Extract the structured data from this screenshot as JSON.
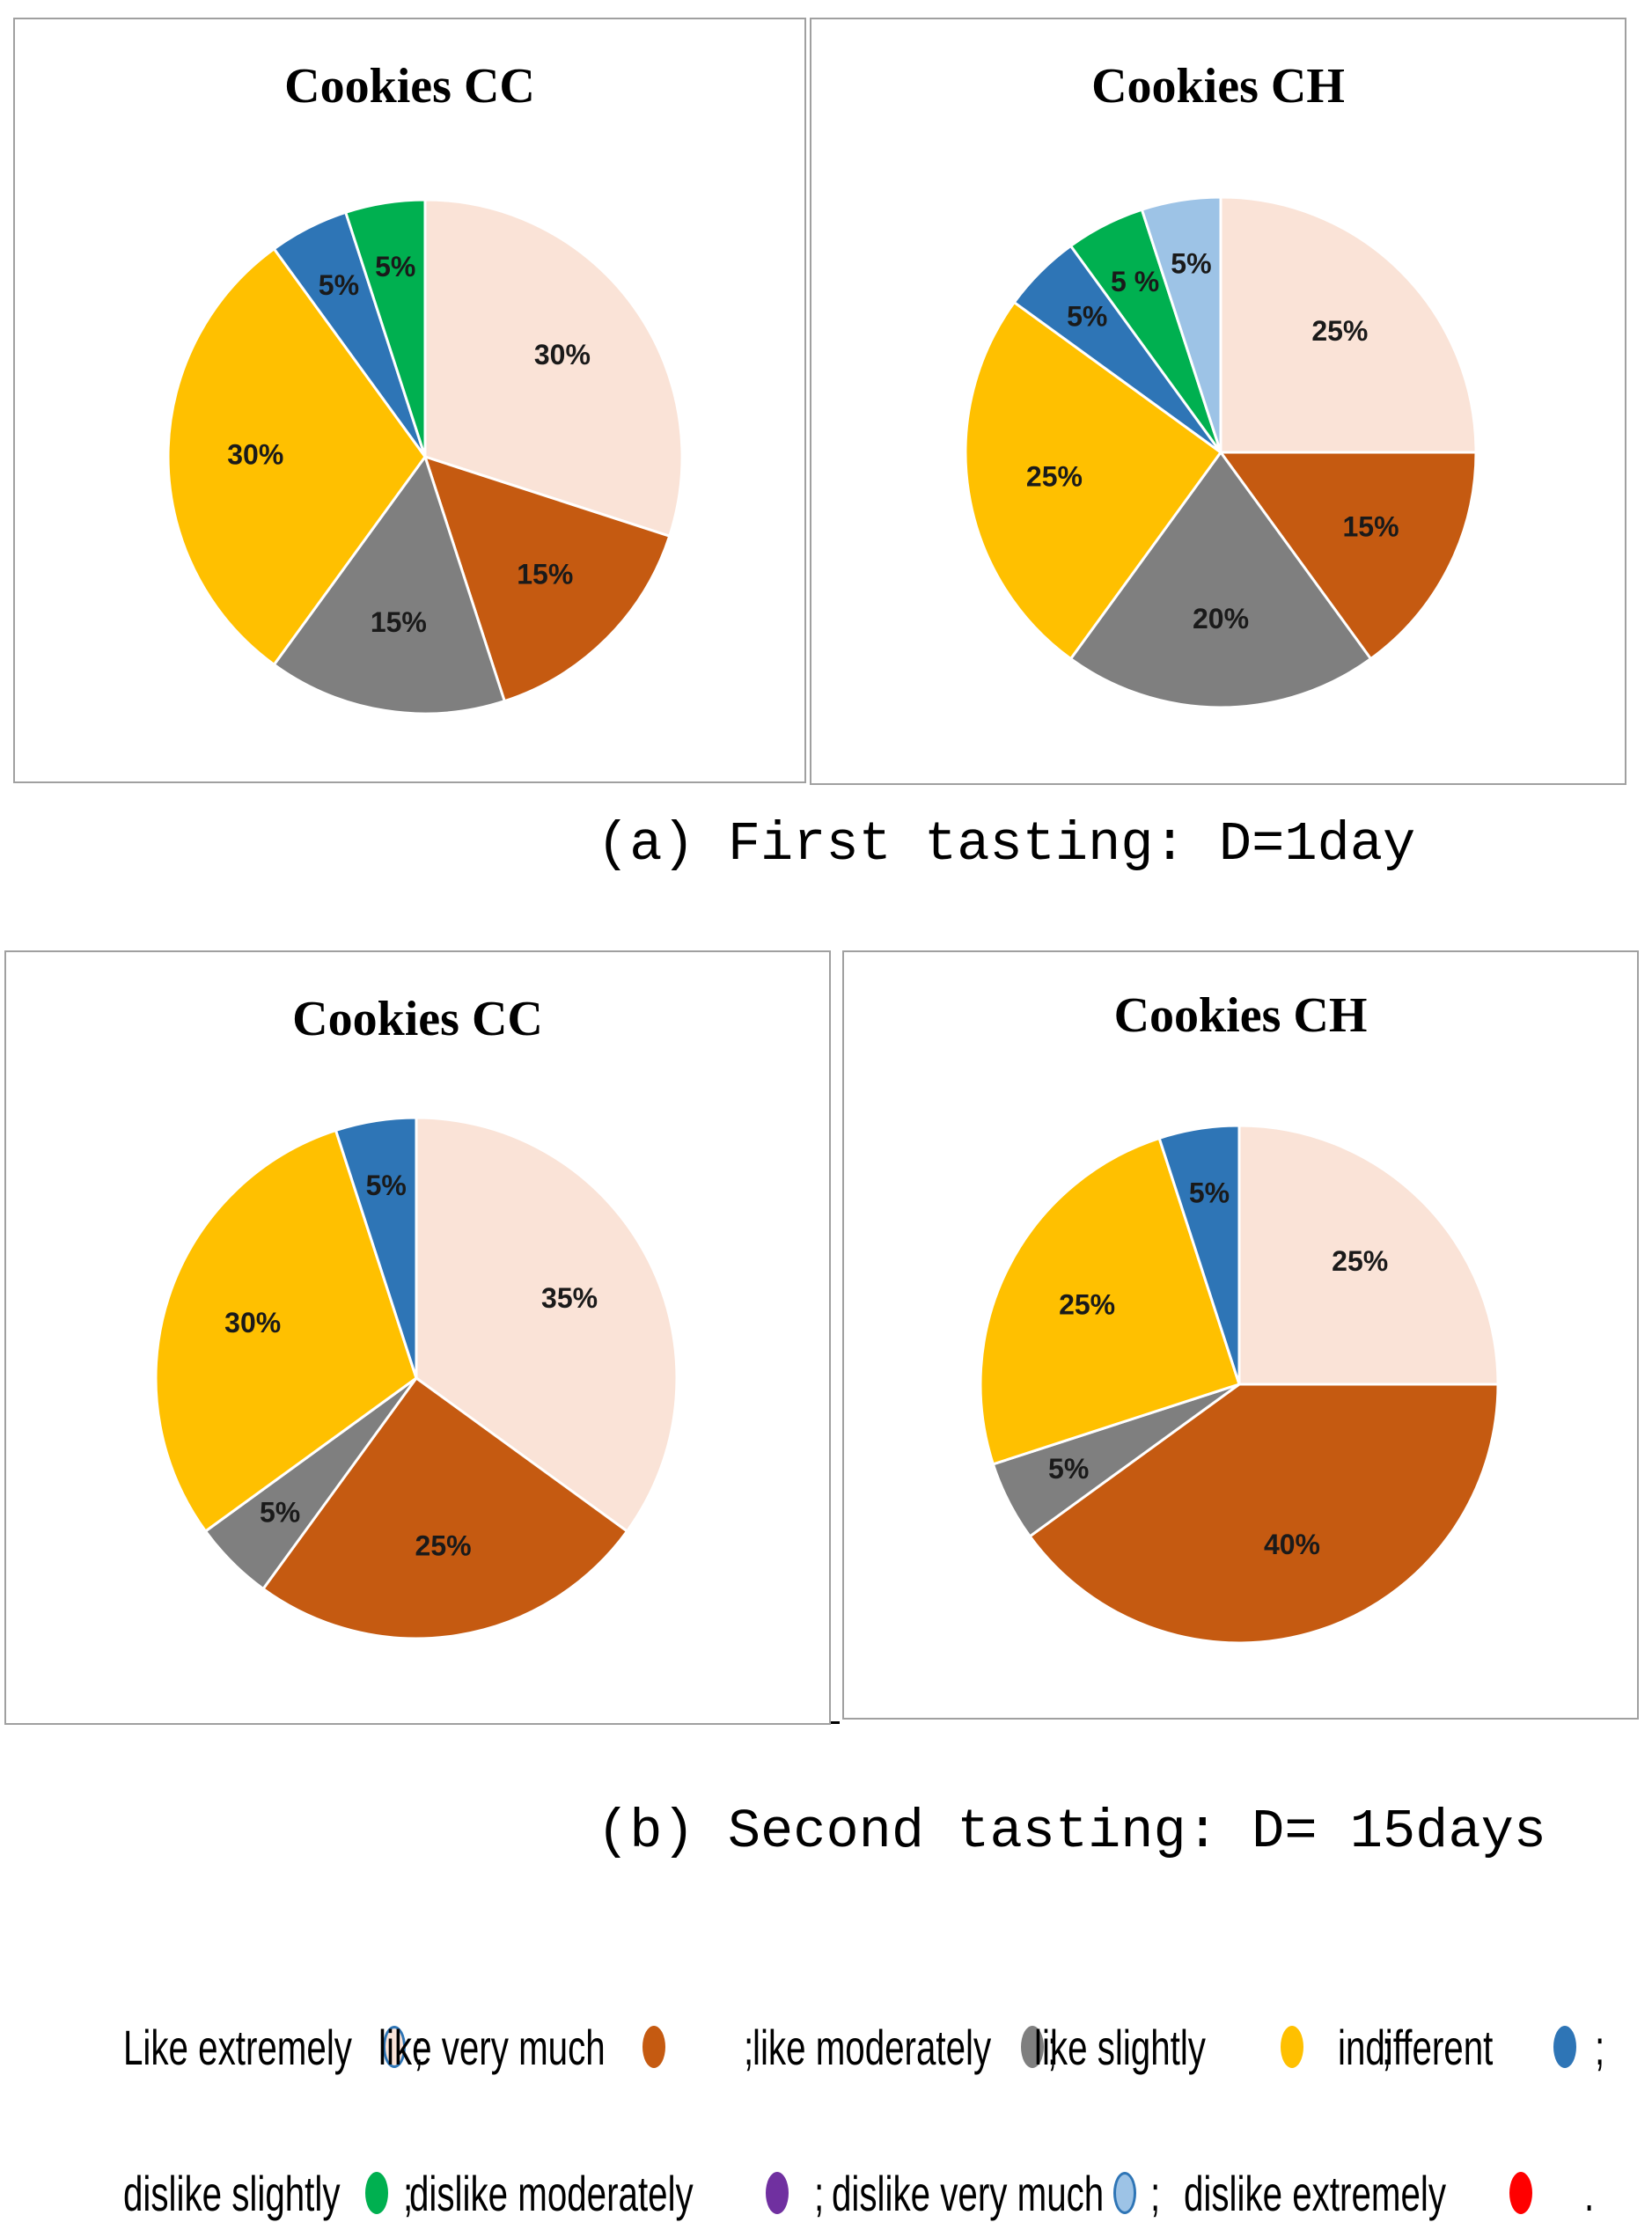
{
  "colors": {
    "like_extremely": "#FAE3D7",
    "like_very_much": "#C55A11",
    "like_moderately": "#7F7F7F",
    "like_slightly": "#FFC000",
    "indifferent": "#2E75B6",
    "dislike_slightly": "#00B050",
    "dislike_moderately": "#7030A0",
    "dislike_very_much": "#9DC3E6",
    "dislike_extremely": "#FF0000"
  },
  "captions": {
    "a": "(a) First tasting: D=1day",
    "b": "(b) Second tasting: D= 15days"
  },
  "legend": {
    "row1": [
      {
        "label": "Like extremely",
        "color_key": "like_extremely",
        "sep": ";"
      },
      {
        "label": "like very much",
        "color_key": "like_very_much",
        "sep": ";"
      },
      {
        "label": "like moderately",
        "color_key": "like_moderately",
        "sep": ";"
      },
      {
        "label": "like slightly",
        "color_key": "like_slightly",
        "sep": ";"
      },
      {
        "label": "indifferent",
        "color_key": "indifferent",
        "sep": ";"
      }
    ],
    "row2": [
      {
        "label": "dislike slightly",
        "color_key": "dislike_slightly",
        "sep": ";"
      },
      {
        "label": "dislike moderately",
        "color_key": "dislike_moderately",
        "sep": ";"
      },
      {
        "label": "dislike very much",
        "color_key": "dislike_very_much",
        "sep": ";"
      },
      {
        "label": "dislike extremely",
        "color_key": "dislike_extremely",
        "sep": "."
      }
    ]
  },
  "chart_data": [
    {
      "type": "pie",
      "title": "Cookies CC",
      "tasting": "a",
      "slices": [
        {
          "category": "Like extremely",
          "color_key": "like_extremely",
          "value": 30,
          "label": "30%"
        },
        {
          "category": "like very much",
          "color_key": "like_very_much",
          "value": 15,
          "label": "15%"
        },
        {
          "category": "like moderately",
          "color_key": "like_moderately",
          "value": 15,
          "label": "15%"
        },
        {
          "category": "like slightly",
          "color_key": "like_slightly",
          "value": 30,
          "label": "30%"
        },
        {
          "category": "indifferent",
          "color_key": "indifferent",
          "value": 5,
          "label": "5%"
        },
        {
          "category": "dislike slightly",
          "color_key": "dislike_slightly",
          "value": 5,
          "label": "5%"
        }
      ]
    },
    {
      "type": "pie",
      "title": "Cookies CH",
      "tasting": "a",
      "slices": [
        {
          "category": "Like extremely",
          "color_key": "like_extremely",
          "value": 25,
          "label": "25%"
        },
        {
          "category": "like very much",
          "color_key": "like_very_much",
          "value": 15,
          "label": "15%"
        },
        {
          "category": "like moderately",
          "color_key": "like_moderately",
          "value": 20,
          "label": "20%"
        },
        {
          "category": "like slightly",
          "color_key": "like_slightly",
          "value": 25,
          "label": "25%"
        },
        {
          "category": "indifferent",
          "color_key": "indifferent",
          "value": 5,
          "label": "5%"
        },
        {
          "category": "dislike slightly",
          "color_key": "dislike_slightly",
          "value": 5,
          "label": "5 %"
        },
        {
          "category": "dislike very much",
          "color_key": "dislike_very_much",
          "value": 5,
          "label": "5%"
        }
      ]
    },
    {
      "type": "pie",
      "title": "Cookies CC",
      "tasting": "b",
      "slices": [
        {
          "category": "Like extremely",
          "color_key": "like_extremely",
          "value": 35,
          "label": "35%"
        },
        {
          "category": "like very much",
          "color_key": "like_very_much",
          "value": 25,
          "label": "25%"
        },
        {
          "category": "like moderately",
          "color_key": "like_moderately",
          "value": 5,
          "label": "5%"
        },
        {
          "category": "like slightly",
          "color_key": "like_slightly",
          "value": 30,
          "label": "30%"
        },
        {
          "category": "indifferent",
          "color_key": "indifferent",
          "value": 5,
          "label": "5%"
        }
      ]
    },
    {
      "type": "pie",
      "title": "Cookies CH",
      "tasting": "b",
      "slices": [
        {
          "category": "Like extremely",
          "color_key": "like_extremely",
          "value": 25,
          "label": "25%"
        },
        {
          "category": "like very much",
          "color_key": "like_very_much",
          "value": 40,
          "label": "40%"
        },
        {
          "category": "like moderately",
          "color_key": "like_moderately",
          "value": 5,
          "label": "5%"
        },
        {
          "category": "like slightly",
          "color_key": "like_slightly",
          "value": 25,
          "label": "25%"
        },
        {
          "category": "indifferent",
          "color_key": "indifferent",
          "value": 5,
          "label": "5%"
        }
      ]
    }
  ]
}
